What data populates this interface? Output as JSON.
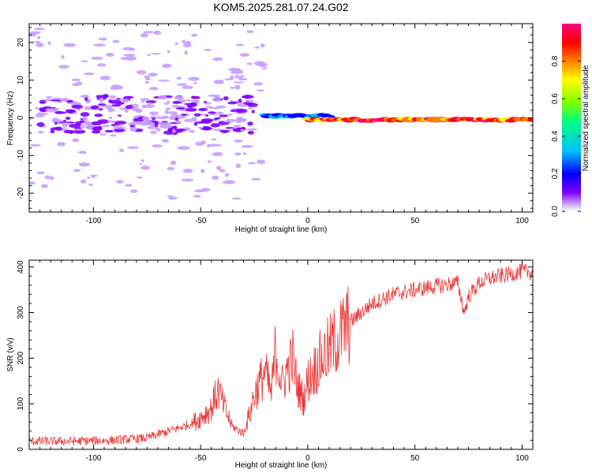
{
  "title": "KOM5.2025.281.07.24.G02",
  "chart_data": [
    {
      "type": "heatmap",
      "xlabel": "Height of straight line (km)",
      "ylabel": "Frequency (Hz)",
      "xlim": [
        -130,
        105
      ],
      "ylim": [
        -25,
        25
      ],
      "xticks": [
        -100,
        -50,
        0,
        50,
        100
      ],
      "yticks": [
        -20,
        -10,
        0,
        10,
        20
      ],
      "colorbar": {
        "label": "Normalized spectral amplitude",
        "range": [
          0,
          1
        ],
        "ticks": [
          "0.0",
          "0.2",
          "0.4",
          "0.6",
          "0.8"
        ],
        "colors": [
          "#ffffff",
          "#c8a0ff",
          "#8000ff",
          "#0000ff",
          "#00c0ff",
          "#00ff80",
          "#80ff00",
          "#ffff00",
          "#ff8000",
          "#ff0000",
          "#ff0080"
        ]
      },
      "features": [
        {
          "x_range": [
            -130,
            -20
          ],
          "freq_range": [
            -22,
            24
          ],
          "amplitude": 0.05,
          "pattern": "scattered weak patches"
        },
        {
          "x_range": [
            -125,
            -25
          ],
          "freq_range": [
            -4,
            6
          ],
          "amplitude": 0.15,
          "pattern": "dense blue patches"
        },
        {
          "x_range": [
            -38,
            -30
          ],
          "freq_range": [
            10,
            13
          ],
          "amplitude": 0.1,
          "pattern": "isolated patch"
        },
        {
          "x_range": [
            -20,
            10
          ],
          "freq_range": [
            -1,
            2
          ],
          "amplitude": 0.35,
          "pattern": "cyan-green line"
        },
        {
          "x_range": [
            0,
            105
          ],
          "freq_range": [
            -1,
            0
          ],
          "amplitude": 0.9,
          "pattern": "strong red line near 0 Hz"
        }
      ]
    },
    {
      "type": "line",
      "xlabel": "Height of straight line (km)",
      "ylabel": "SNR (v/v)",
      "xlim": [
        -130,
        105
      ],
      "ylim": [
        0,
        415
      ],
      "xticks": [
        -100,
        -50,
        0,
        50,
        100
      ],
      "yticks": [
        0,
        100,
        200,
        300,
        400
      ],
      "color": "#ee3333",
      "series": [
        {
          "name": "SNR",
          "x": [
            -130,
            -110,
            -90,
            -75,
            -65,
            -55,
            -50,
            -45,
            -42,
            -38,
            -35,
            -30,
            -27,
            -25,
            -20,
            -17,
            -15,
            -12,
            -10,
            -7,
            -5,
            -2,
            0,
            5,
            10,
            15,
            20,
            25,
            30,
            40,
            50,
            60,
            65,
            70,
            73,
            75,
            80,
            85,
            90,
            95,
            100,
            105
          ],
          "y": [
            18,
            18,
            20,
            25,
            40,
            55,
            70,
            90,
            130,
            80,
            50,
            35,
            80,
            120,
            170,
            120,
            220,
            140,
            170,
            200,
            140,
            110,
            150,
            190,
            220,
            250,
            280,
            300,
            320,
            340,
            350,
            358,
            362,
            365,
            300,
            335,
            365,
            375,
            380,
            385,
            390,
            388
          ]
        }
      ]
    }
  ]
}
